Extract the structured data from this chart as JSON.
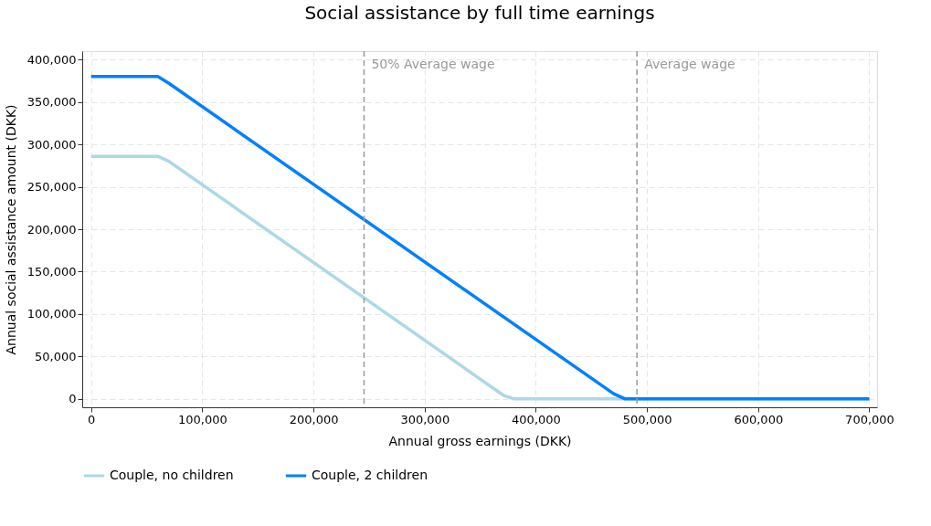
{
  "chart_data": {
    "type": "line",
    "title": "Social assistance by full time earnings",
    "xlabel": "Annual gross earnings (DKK)",
    "ylabel": "Annual social assistance amount (DKK)",
    "series": [
      {
        "name": "Couple, no children",
        "color": "#add8e6",
        "x": [
          0,
          60000,
          70000,
          371000,
          380000,
          700000
        ],
        "values": [
          286000,
          286000,
          280000,
          4000,
          0,
          0
        ]
      },
      {
        "name": "Couple, 2 children",
        "color": "#0080ff",
        "x": [
          0,
          60000,
          70000,
          470000,
          480000,
          700000
        ],
        "values": [
          380000,
          380000,
          372000,
          6000,
          0,
          0
        ]
      }
    ],
    "xlim": [
      -8000,
      707000
    ],
    "xticks": [
      {
        "value": 0,
        "label": "0"
      },
      {
        "value": 100000,
        "label": "100,000"
      },
      {
        "value": 200000,
        "label": "200,000"
      },
      {
        "value": 300000,
        "label": "300,000"
      },
      {
        "value": 400000,
        "label": "400,000"
      },
      {
        "value": 500000,
        "label": "500,000"
      },
      {
        "value": 600000,
        "label": "600,000"
      },
      {
        "value": 700000,
        "label": "700,000"
      }
    ],
    "ylim": [
      -10000,
      410000
    ],
    "yticks": [
      {
        "value": 0,
        "label": "0"
      },
      {
        "value": 50000,
        "label": "50,000"
      },
      {
        "value": 100000,
        "label": "100,000"
      },
      {
        "value": 150000,
        "label": "150,000"
      },
      {
        "value": 200000,
        "label": "200,000"
      },
      {
        "value": 250000,
        "label": "250,000"
      },
      {
        "value": 300000,
        "label": "300,000"
      },
      {
        "value": 350000,
        "label": "350,000"
      },
      {
        "value": 400000,
        "label": "400,000"
      }
    ],
    "ref_lines": [
      {
        "axis": "x",
        "value": 245500,
        "label": "50% Average wage",
        "color": "#999999",
        "line_style": "dashed"
      },
      {
        "axis": "x",
        "value": 491000,
        "label": "Average wage",
        "color": "#999999",
        "line_style": "dashed"
      }
    ],
    "grid": true,
    "legend": "bottom",
    "marker": "none",
    "line_style": "solid"
  }
}
